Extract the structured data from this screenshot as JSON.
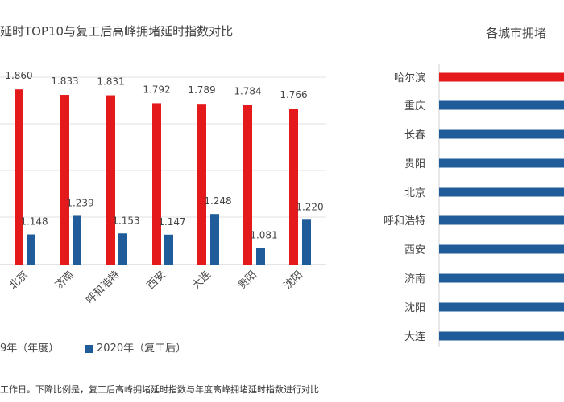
{
  "chart_data": [
    {
      "type": "bar",
      "title": "延时TOP10与复工后高峰拥堵延时指数对比",
      "categories": [
        "北京",
        "济南",
        "呼和浩特",
        "西安",
        "大连",
        "贵阳",
        "沈阳"
      ],
      "series": [
        {
          "name": "9年（年度）",
          "color": "#e3191c",
          "values": [
            1.86,
            1.833,
            1.831,
            1.792,
            1.789,
            1.784,
            1.766
          ],
          "labels": [
            "1.860",
            "1.833",
            "1.831",
            "1.792",
            "1.789",
            "1.784",
            "1.766"
          ]
        },
        {
          "name": "2020年（复工后）",
          "color": "#1f5c99",
          "values": [
            1.148,
            1.239,
            1.153,
            1.147,
            1.248,
            1.081,
            1.22
          ],
          "labels": [
            "1.148",
            "1.239",
            "1.153",
            "1.147",
            "1.248",
            "1.081",
            "1.220"
          ]
        }
      ],
      "ylim": [
        1.0,
        1.92
      ],
      "grid": true,
      "legend_position": "bottom"
    },
    {
      "type": "bar",
      "orientation": "horizontal",
      "title": "各城市拥堵",
      "categories": [
        "哈尔滨",
        "重庆",
        "长春",
        "贵阳",
        "北京",
        "呼和浩特",
        "西安",
        "济南",
        "沈阳",
        "大连"
      ],
      "highlight_color": "#e3191c",
      "bar_color": "#1f5c99"
    }
  ],
  "footnote": "工作日。下降比例是，复工后高峰拥堵延时指数与年度高峰拥堵延时指数进行对比"
}
